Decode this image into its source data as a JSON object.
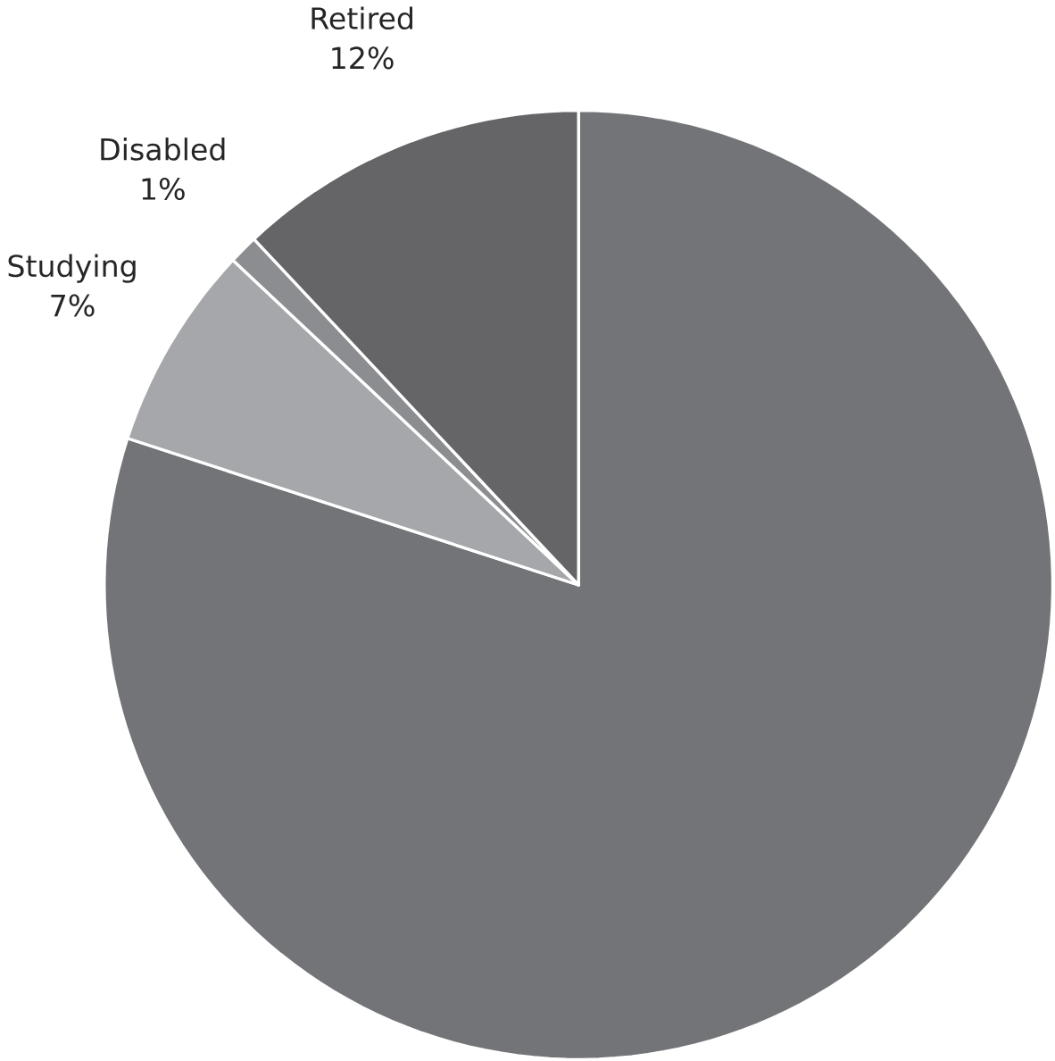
{
  "chart_data": {
    "type": "pie",
    "categories": [
      null,
      "Studying",
      "Disabled",
      "Retired"
    ],
    "values": [
      80,
      7,
      1,
      12
    ],
    "value_labels": [
      null,
      "7%",
      "1%",
      "12%"
    ],
    "colors": [
      "#737478",
      "#a6a7aa",
      "#8c8d90",
      "#656568"
    ]
  }
}
